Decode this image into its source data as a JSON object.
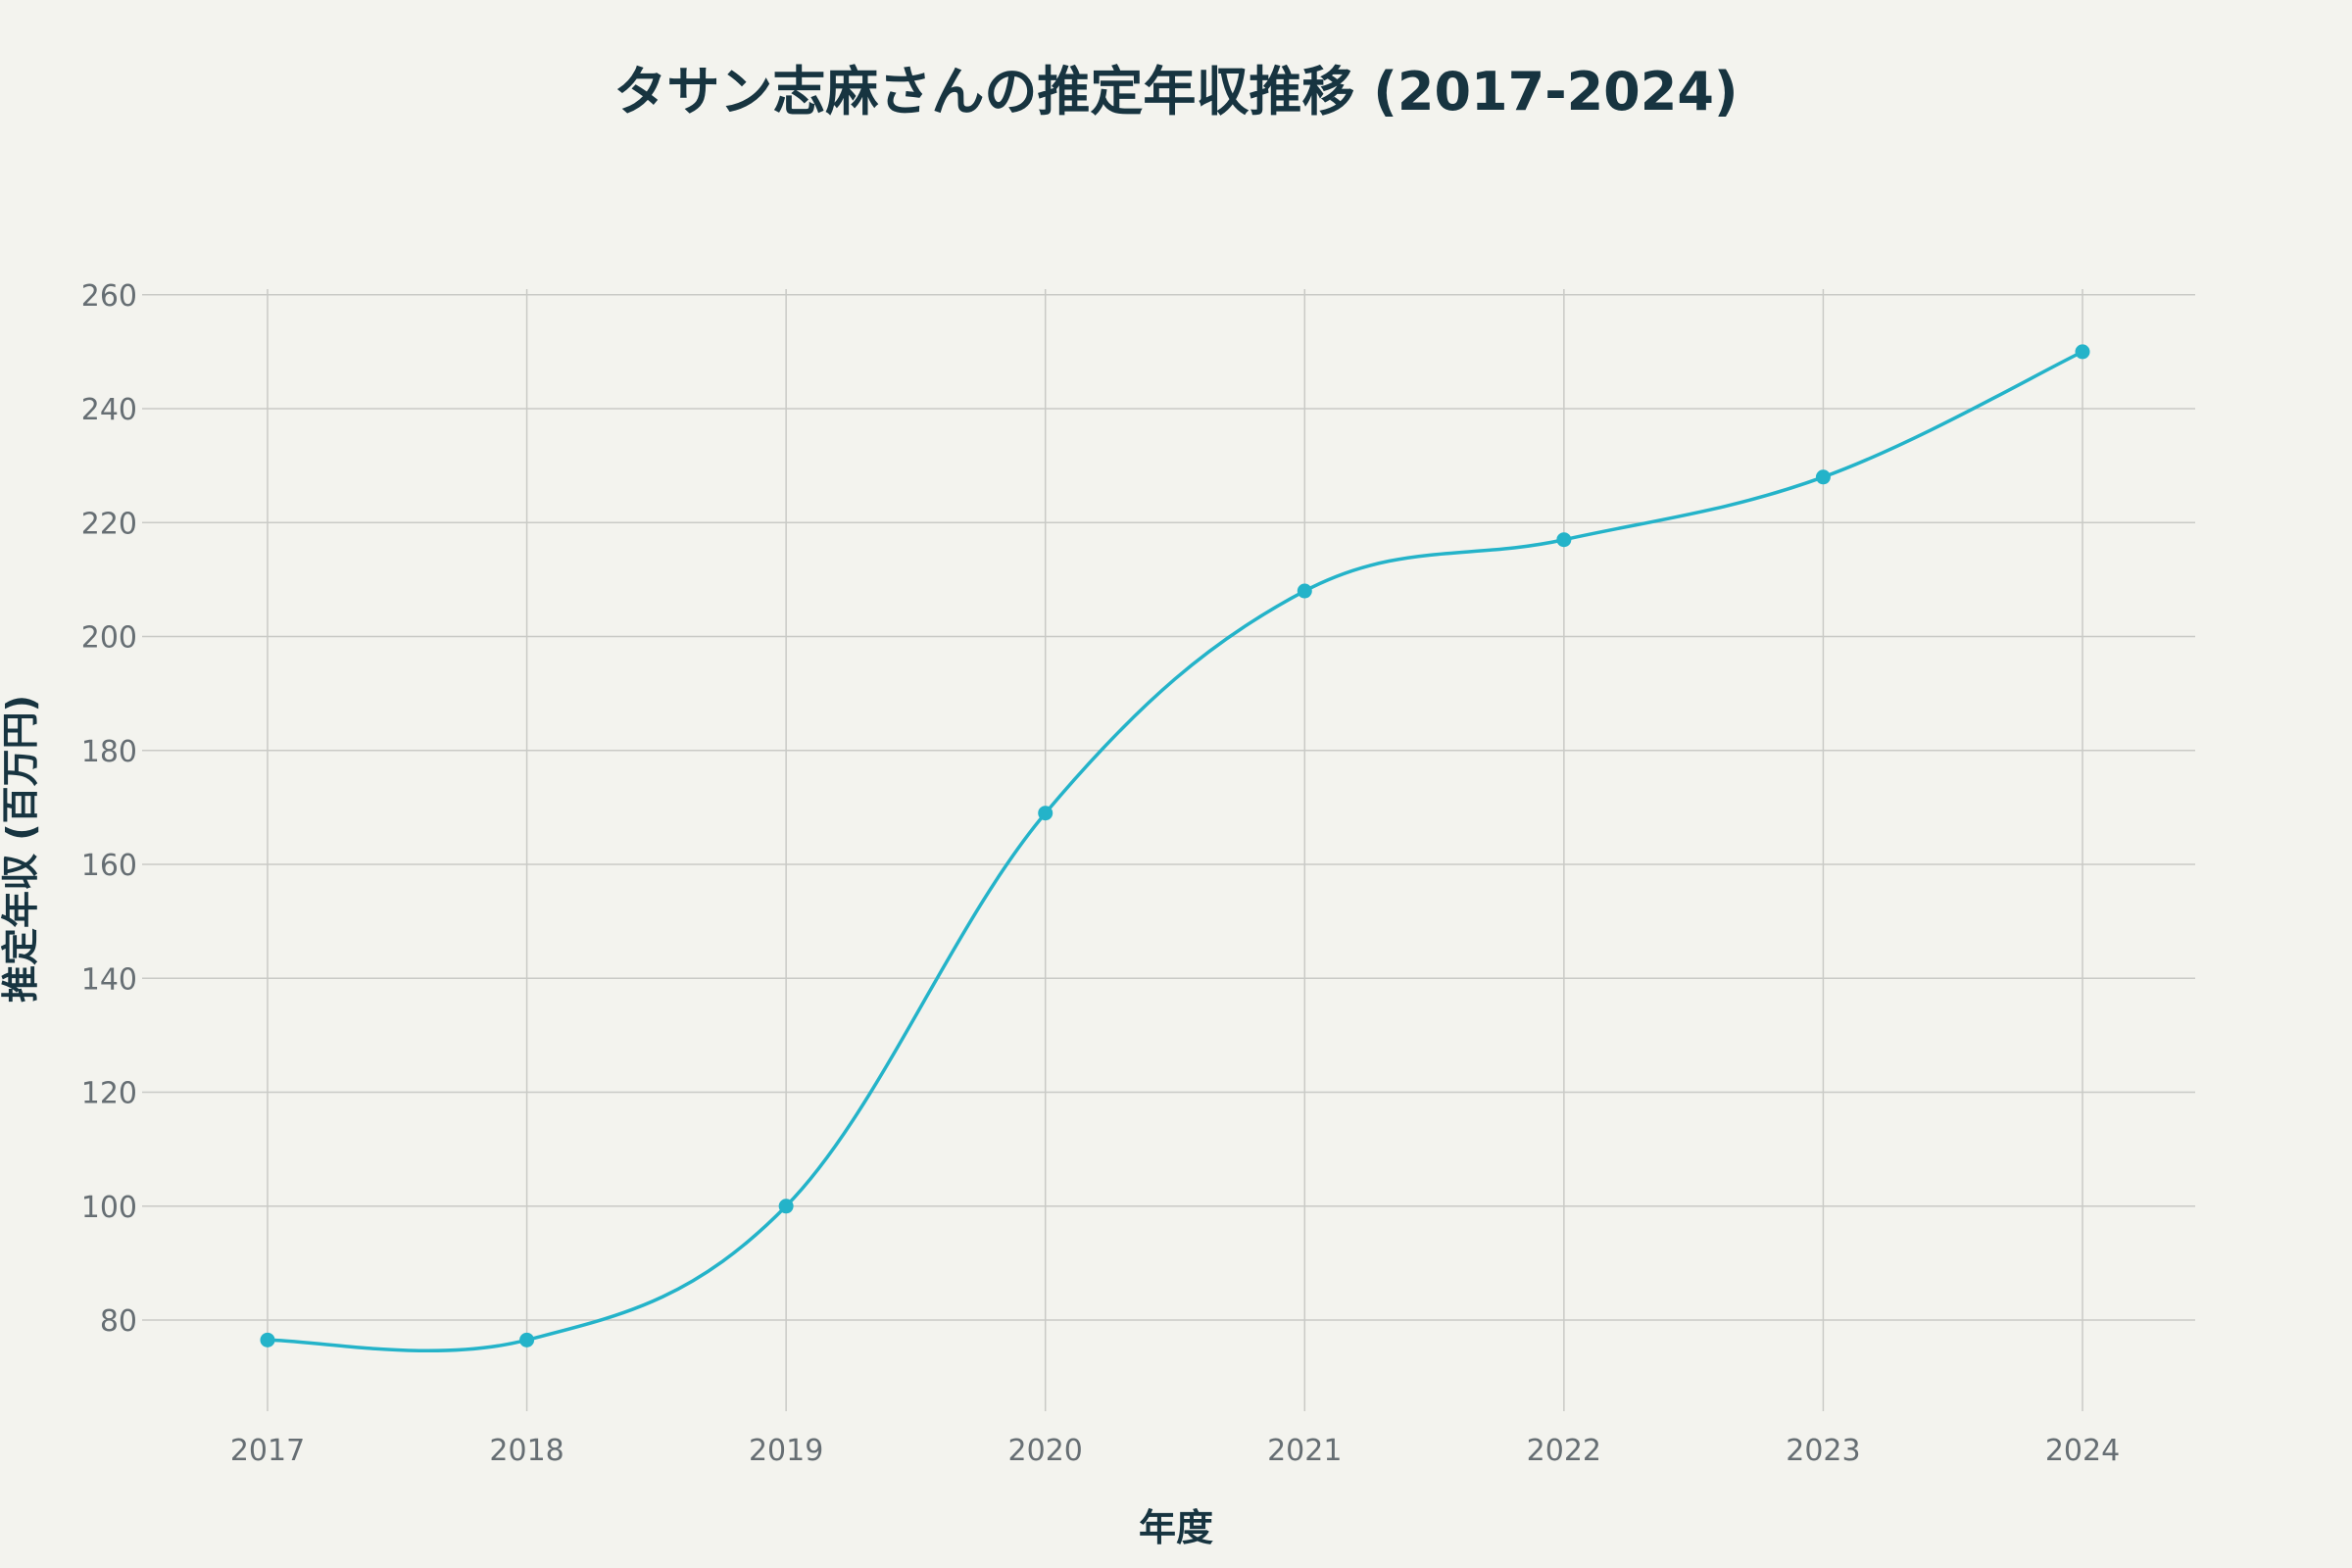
{
  "chart_data": {
    "type": "line",
    "title": "タサン志麻さんの推定年収推移 (2017-2024)",
    "xlabel": "年度",
    "ylabel": "推定年収 (百万円)",
    "x": [
      "2017",
      "2018",
      "2019",
      "2020",
      "2021",
      "2022",
      "2023",
      "2024"
    ],
    "x_tick_labels": [
      "2017",
      "2018",
      "2019",
      "2020",
      "2021",
      "2022",
      "2023",
      "2024"
    ],
    "series": [
      {
        "values": [
          76.5,
          76.5,
          100,
          169,
          208,
          217,
          228,
          250
        ],
        "color": "#24b3c9"
      }
    ],
    "ylim": [
      64,
      261
    ],
    "y_ticks": [
      80,
      100,
      120,
      140,
      160,
      180,
      200,
      220,
      240,
      260
    ],
    "y_tick_labels": [
      "80",
      "100",
      "120",
      "140",
      "160",
      "180",
      "200",
      "220",
      "240",
      "260"
    ],
    "grid": true,
    "legend": "none",
    "colors": {
      "background": "#f3f3ee",
      "line": "#24b3c9",
      "title": "#173440",
      "tick": "#666e73",
      "grid": "#c9cac6"
    }
  }
}
